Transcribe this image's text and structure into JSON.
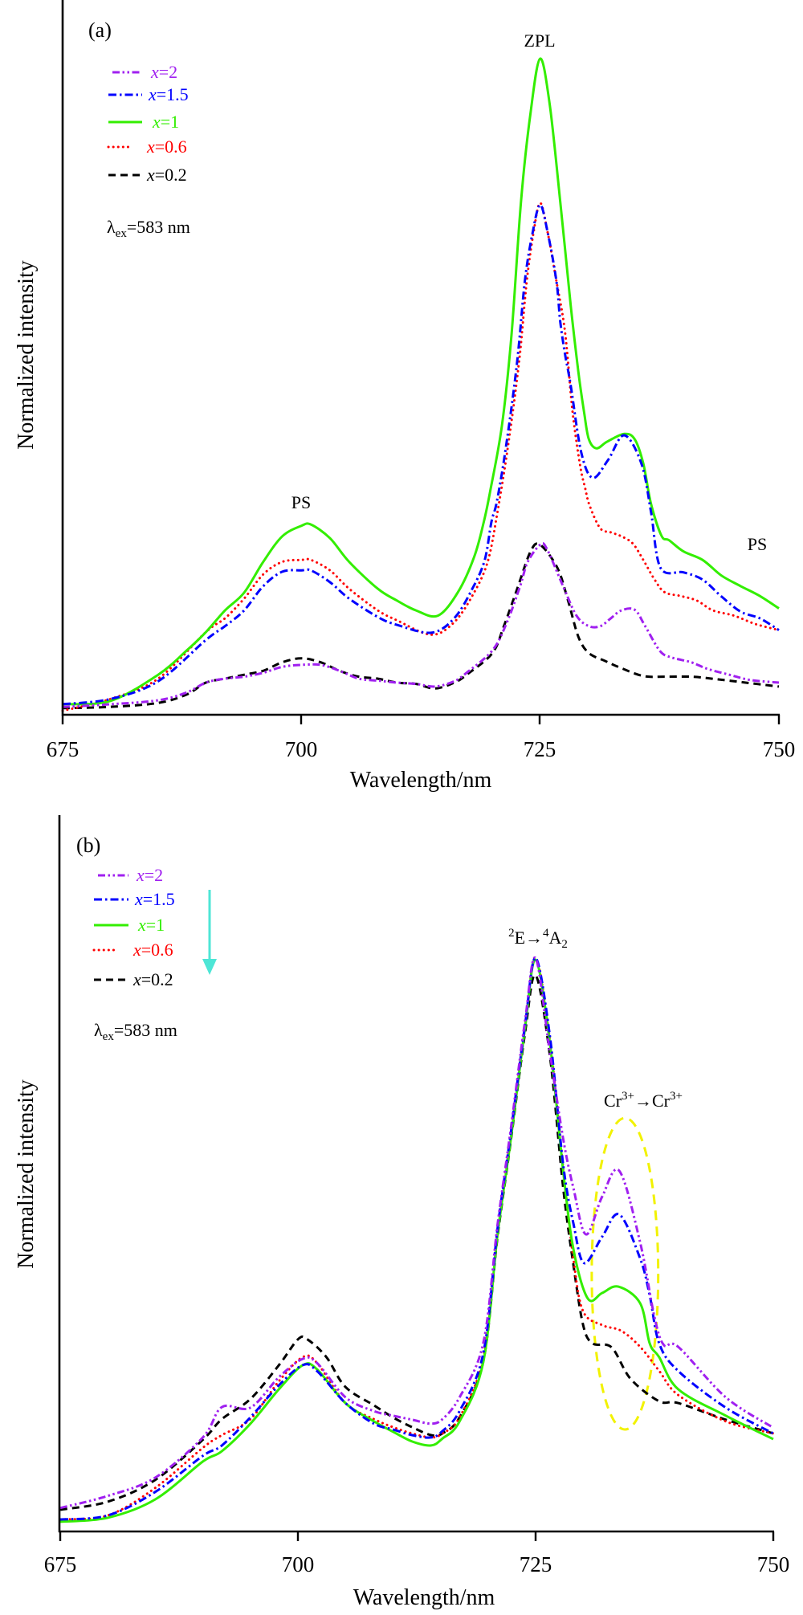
{
  "chart_data": [
    {
      "panel_label": "(a)",
      "type": "line",
      "xlabel": "Wavelength/nm",
      "ylabel": "Normalized intensity",
      "xlim": [
        675,
        750
      ],
      "xticks": [
        675,
        700,
        725,
        750
      ],
      "ylim": [
        0,
        1
      ],
      "yticks": [],
      "grid": false,
      "legend_position": "top-left",
      "excitation": {
        "symbol": "λ",
        "subscript": "ex",
        "value": "=583 nm"
      },
      "annotations": [
        {
          "text": "ZPL",
          "at_nm": 725
        },
        {
          "text": "PS",
          "at_nm": 700
        },
        {
          "text": "PS",
          "at_nm": 748
        }
      ],
      "series": [
        {
          "name": "x=2",
          "label_var": "x",
          "label_value": "=2",
          "color": "#a020f0",
          "style": "dash-dot-dot",
          "x": [
            675,
            680,
            685,
            688,
            690,
            692,
            694,
            696,
            698,
            700,
            702,
            704,
            706,
            708,
            710,
            712,
            714,
            716,
            717.3,
            720,
            721.5,
            722.9,
            723.7,
            725,
            725.7,
            727.4,
            728.8,
            730.1,
            731.3,
            732.4,
            733.5,
            734.9,
            736,
            737.5,
            738.6,
            740.8,
            742.5,
            744.8,
            747,
            750
          ],
          "y": [
            0.012,
            0.016,
            0.022,
            0.034,
            0.049,
            0.055,
            0.058,
            0.064,
            0.073,
            0.076,
            0.076,
            0.067,
            0.055,
            0.052,
            0.049,
            0.047,
            0.043,
            0.051,
            0.064,
            0.098,
            0.14,
            0.196,
            0.233,
            0.259,
            0.253,
            0.196,
            0.151,
            0.135,
            0.135,
            0.147,
            0.159,
            0.16,
            0.135,
            0.098,
            0.088,
            0.08,
            0.07,
            0.061,
            0.053,
            0.049
          ]
        },
        {
          "name": "x=1.5",
          "label_var": "x",
          "label_value": "=1.5",
          "color": "#0000ff",
          "style": "dash-dot",
          "x": [
            675,
            680,
            685,
            690,
            692,
            694,
            696,
            698,
            700,
            701,
            703,
            705,
            708,
            710,
            713.6,
            716,
            717.9,
            719.2,
            719.9,
            720.5,
            721.5,
            722.6,
            723.4,
            724.2,
            725,
            725.8,
            726.7,
            727.1,
            727.6,
            728.2,
            729.3,
            730.5,
            732.1,
            733.8,
            735.6,
            736.6,
            737.6,
            740,
            742,
            744,
            746,
            748,
            750
          ],
          "y": [
            0.016,
            0.024,
            0.051,
            0.114,
            0.135,
            0.159,
            0.196,
            0.218,
            0.22,
            0.22,
            0.202,
            0.177,
            0.149,
            0.137,
            0.125,
            0.147,
            0.192,
            0.236,
            0.294,
            0.327,
            0.416,
            0.539,
            0.661,
            0.734,
            0.777,
            0.734,
            0.661,
            0.6,
            0.55,
            0.502,
            0.4,
            0.361,
            0.388,
            0.426,
            0.383,
            0.31,
            0.224,
            0.217,
            0.206,
            0.18,
            0.157,
            0.147,
            0.129
          ]
        },
        {
          "name": "x=1",
          "label_var": "x",
          "label_value": "=1",
          "color": "#33ee00",
          "style": "solid",
          "x": [
            675,
            680,
            685,
            688,
            690,
            692,
            694,
            696,
            698,
            700,
            701,
            703,
            705,
            708,
            710,
            712,
            714.3,
            716.4,
            718.1,
            719.1,
            719.8,
            721,
            722,
            723,
            724,
            725,
            726,
            727.1,
            728.2,
            729,
            729.6,
            730.1,
            730.9,
            732,
            733.8,
            734.9,
            735.8,
            736.6,
            737.7,
            738.5,
            740,
            742,
            744,
            746,
            748,
            750
          ],
          "y": [
            0.016,
            0.021,
            0.061,
            0.098,
            0.126,
            0.159,
            0.186,
            0.233,
            0.272,
            0.288,
            0.29,
            0.269,
            0.233,
            0.192,
            0.174,
            0.159,
            0.151,
            0.187,
            0.241,
            0.294,
            0.343,
            0.441,
            0.579,
            0.783,
            0.918,
            1.0,
            0.93,
            0.783,
            0.624,
            0.523,
            0.461,
            0.42,
            0.406,
            0.416,
            0.428,
            0.42,
            0.383,
            0.322,
            0.273,
            0.266,
            0.249,
            0.236,
            0.212,
            0.196,
            0.181,
            0.162
          ]
        },
        {
          "name": "x=0.6",
          "label_var": "x",
          "label_value": "=0.6",
          "color": "#ff0000",
          "style": "dotted",
          "x": [
            675,
            680,
            685,
            690,
            692,
            694,
            696,
            698,
            700,
            701,
            703,
            705,
            708,
            710,
            713.6,
            716,
            718,
            719.5,
            720.5,
            721.7,
            722.8,
            723.6,
            724.3,
            725,
            725.8,
            726.7,
            727.6,
            728.4,
            729.2,
            729.7,
            730.2,
            731.3,
            732.4,
            733.5,
            734.7,
            735.8,
            736.9,
            738,
            739.7,
            741.4,
            743.1,
            745.3,
            747.6,
            750
          ],
          "y": [
            0.006,
            0.024,
            0.055,
            0.126,
            0.147,
            0.177,
            0.214,
            0.233,
            0.236,
            0.236,
            0.22,
            0.192,
            0.159,
            0.144,
            0.122,
            0.141,
            0.184,
            0.233,
            0.306,
            0.416,
            0.539,
            0.661,
            0.734,
            0.78,
            0.734,
            0.661,
            0.584,
            0.461,
            0.379,
            0.346,
            0.318,
            0.284,
            0.278,
            0.272,
            0.261,
            0.236,
            0.208,
            0.187,
            0.181,
            0.174,
            0.159,
            0.151,
            0.138,
            0.129
          ]
        },
        {
          "name": "x=0.2",
          "label_var": "x",
          "label_value": "=0.2",
          "color": "#000000",
          "style": "dashed",
          "x": [
            675,
            680,
            685,
            688,
            690,
            692,
            694,
            696,
            698,
            700,
            702,
            704,
            706,
            708,
            710,
            712,
            714,
            716,
            717.3,
            720,
            721.2,
            722.6,
            724,
            725,
            726.8,
            727.9,
            729,
            730.1,
            731.8,
            733.5,
            735.8,
            738,
            740.8,
            743,
            746.5,
            750
          ],
          "y": [
            0.01,
            0.012,
            0.018,
            0.031,
            0.049,
            0.055,
            0.061,
            0.067,
            0.08,
            0.086,
            0.08,
            0.067,
            0.058,
            0.055,
            0.049,
            0.047,
            0.04,
            0.049,
            0.061,
            0.094,
            0.135,
            0.192,
            0.249,
            0.259,
            0.224,
            0.175,
            0.119,
            0.094,
            0.082,
            0.071,
            0.059,
            0.058,
            0.058,
            0.055,
            0.049,
            0.043
          ]
        }
      ]
    },
    {
      "panel_label": "(b)",
      "type": "line",
      "xlabel": "Wavelength/nm",
      "ylabel": "Normalized intensity",
      "xlim": [
        675,
        750
      ],
      "xticks": [
        675,
        700,
        725,
        750
      ],
      "ylim": [
        0,
        1
      ],
      "yticks": [],
      "grid": false,
      "legend_position": "top-left",
      "legend_arrow": {
        "color": "#4ee6d6",
        "direction": "down"
      },
      "excitation": {
        "symbol": "λ",
        "subscript": "ex",
        "value": "=583 nm"
      },
      "annotations": [
        {
          "type": "transition",
          "upper_multiplicity": "2",
          "upper_state": "E",
          "arrow": "→",
          "lower_multiplicity": "4",
          "lower_state": "A",
          "lower_subscript": "2",
          "at_nm": 725
        },
        {
          "type": "energy-transfer",
          "ion": "Cr",
          "charge": "3+",
          "arrow": "→",
          "at_nm": 734
        }
      ],
      "highlight": {
        "shape": "ellipse",
        "x_range": [
          730.9,
          737.9
        ],
        "y_range": [
          0.178,
          0.721
        ],
        "color": "#f2f200",
        "style": "dashed"
      },
      "series": [
        {
          "name": "x=2",
          "label_var": "x",
          "label_value": "=2",
          "color": "#a020f0",
          "style": "dash-dot-dot",
          "x": [
            675,
            680,
            685,
            690,
            692,
            695,
            698,
            700.5,
            702,
            705,
            708,
            710,
            712,
            714,
            715.2,
            717,
            719.5,
            721,
            722.4,
            723.9,
            725,
            726.5,
            727.9,
            729,
            730.3,
            732,
            733.8,
            736,
            737.5,
            738.5,
            740,
            745,
            750
          ],
          "y": [
            0.041,
            0.062,
            0.094,
            0.164,
            0.217,
            0.216,
            0.269,
            0.301,
            0.294,
            0.234,
            0.21,
            0.202,
            0.195,
            0.188,
            0.196,
            0.234,
            0.329,
            0.535,
            0.703,
            0.892,
            1.0,
            0.835,
            0.685,
            0.597,
            0.518,
            0.584,
            0.629,
            0.504,
            0.374,
            0.325,
            0.322,
            0.234,
            0.181
          ]
        },
        {
          "name": "x=1.5",
          "label_var": "x",
          "label_value": "=1.5",
          "color": "#0000ff",
          "style": "dash-dot",
          "x": [
            675,
            680,
            685,
            690,
            692,
            695,
            698,
            700.5,
            702,
            705,
            708,
            710,
            712,
            714,
            715.2,
            717,
            719.5,
            721,
            722.4,
            723.9,
            725,
            726.5,
            727.9,
            729,
            730.1,
            732,
            733.8,
            736,
            737,
            738,
            740,
            745,
            750
          ],
          "y": [
            0.021,
            0.028,
            0.069,
            0.132,
            0.15,
            0.199,
            0.255,
            0.29,
            0.28,
            0.224,
            0.188,
            0.178,
            0.168,
            0.164,
            0.175,
            0.21,
            0.311,
            0.528,
            0.696,
            0.885,
            1.0,
            0.864,
            0.64,
            0.535,
            0.468,
            0.514,
            0.553,
            0.476,
            0.412,
            0.328,
            0.28,
            0.216,
            0.171
          ]
        },
        {
          "name": "x=1",
          "label_var": "x",
          "label_value": "=1",
          "color": "#33ee00",
          "style": "solid",
          "x": [
            675,
            680,
            685,
            690,
            692,
            695,
            698,
            700.5,
            702,
            705,
            708,
            710,
            712,
            714,
            715.2,
            717,
            719.5,
            721,
            722.4,
            723.9,
            725,
            726.5,
            727.9,
            729,
            730.5,
            732,
            733.7,
            736,
            737,
            738,
            740,
            745,
            750
          ],
          "y": [
            0.017,
            0.024,
            0.056,
            0.122,
            0.14,
            0.188,
            0.248,
            0.29,
            0.283,
            0.224,
            0.192,
            0.174,
            0.157,
            0.15,
            0.162,
            0.192,
            0.296,
            0.518,
            0.685,
            0.88,
            0.997,
            0.852,
            0.629,
            0.49,
            0.406,
            0.416,
            0.427,
            0.398,
            0.328,
            0.304,
            0.248,
            0.202,
            0.161
          ]
        },
        {
          "name": "x=0.6",
          "label_var": "x",
          "label_value": "=0.6",
          "color": "#ff0000",
          "style": "dotted",
          "x": [
            675,
            680,
            685,
            690,
            692,
            695,
            698,
            700.5,
            702,
            705,
            708,
            710,
            712,
            714,
            715.2,
            717,
            719.5,
            721,
            722.4,
            723.9,
            725,
            726.5,
            727.9,
            729,
            730,
            732,
            734,
            736,
            738,
            740,
            745,
            750
          ],
          "y": [
            0.021,
            0.028,
            0.076,
            0.146,
            0.168,
            0.196,
            0.262,
            0.304,
            0.294,
            0.224,
            0.196,
            0.182,
            0.171,
            0.164,
            0.171,
            0.199,
            0.304,
            0.521,
            0.693,
            0.882,
            1.0,
            0.857,
            0.633,
            0.472,
            0.384,
            0.36,
            0.35,
            0.322,
            0.28,
            0.238,
            0.192,
            0.171
          ]
        },
        {
          "name": "x=0.2",
          "label_var": "x",
          "label_value": "=0.2",
          "color": "#000000",
          "style": "dashed",
          "x": [
            675,
            680,
            685,
            690,
            692,
            695,
            698,
            700,
            701,
            703,
            705,
            708,
            710,
            712,
            714,
            715.2,
            717,
            719.5,
            721,
            722.4,
            723.9,
            725,
            726.5,
            727.9,
            729,
            730,
            731,
            733,
            735,
            738,
            740,
            745,
            750
          ],
          "y": [
            0.038,
            0.052,
            0.09,
            0.16,
            0.196,
            0.231,
            0.29,
            0.335,
            0.335,
            0.304,
            0.252,
            0.22,
            0.199,
            0.182,
            0.168,
            0.171,
            0.199,
            0.297,
            0.514,
            0.682,
            0.871,
            0.97,
            0.83,
            0.6,
            0.462,
            0.36,
            0.328,
            0.321,
            0.266,
            0.227,
            0.224,
            0.195,
            0.171
          ]
        }
      ]
    }
  ]
}
